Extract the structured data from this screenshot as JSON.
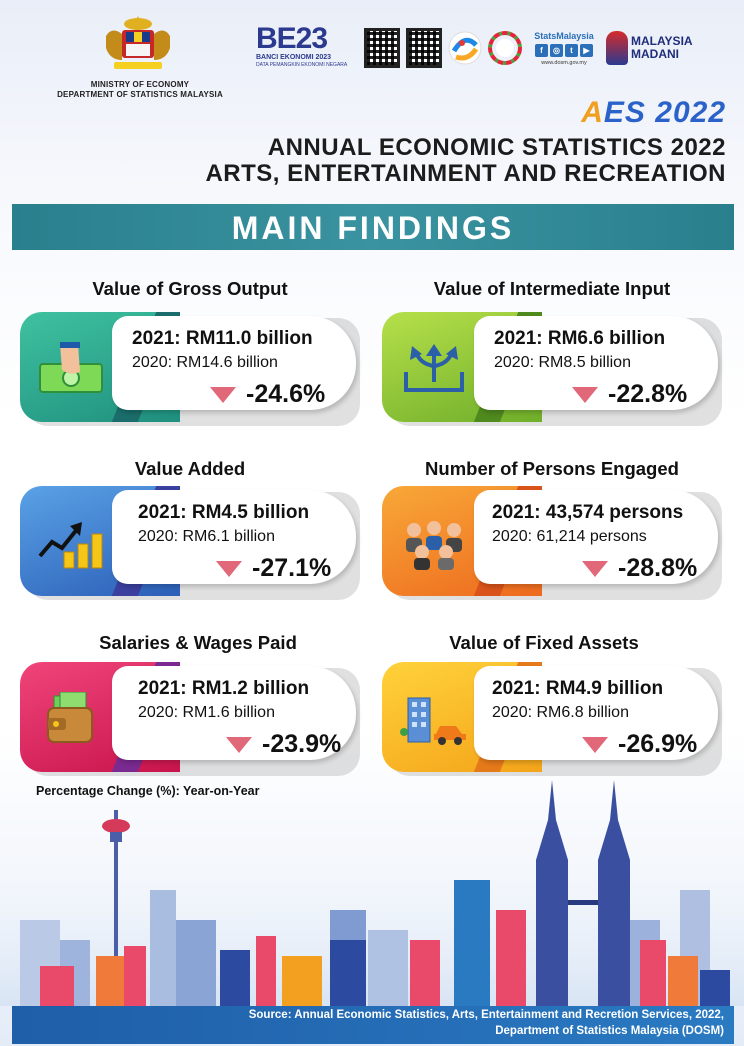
{
  "header": {
    "ministry_line1": "MINISTRY OF ECONOMY",
    "ministry_line2": "DEPARTMENT OF STATISTICS MALAYSIA",
    "banci_logo": "BE23",
    "banci_line1": "BANCI EKONOMI 2023",
    "banci_line2": "DATA PEMANGKIN EKONOMI NEGARA",
    "statsmalaysia_label": "StatsMalaysia",
    "statsmalaysia_url": "www.dosm.gov.my",
    "social_icons": [
      "f",
      "◎",
      "t",
      "▶"
    ],
    "madani_line1": "MALAYSIA",
    "madani_line2": "MADANI",
    "aes_logo_a": "A",
    "aes_logo_rest": "ES 2022",
    "title_line1": "ANNUAL ECONOMIC STATISTICS 2022",
    "title_line2": "ARTS, ENTERTAINMENT AND RECREATION"
  },
  "banner": {
    "text": "MAIN FINDINGS"
  },
  "cards": {
    "gross_output": {
      "title": "Value of Gross Output",
      "v2021": "2021: RM11.0 billion",
      "v2020": "2020: RM14.6 billion",
      "pct": "-24.6%",
      "icon": "money-hand-icon"
    },
    "intermediate_input": {
      "title": "Value of Intermediate Input",
      "v2021": "2021: RM6.6 billion",
      "v2020": "2020: RM8.5 billion",
      "pct": "-22.8%",
      "icon": "input-arrows-icon"
    },
    "value_added": {
      "title": "Value Added",
      "v2021": "2021: RM4.5 billion",
      "v2020": "2020: RM6.1 billion",
      "pct": "-27.1%",
      "icon": "growth-coins-icon"
    },
    "persons_engaged": {
      "title": "Number of Persons Engaged",
      "v2021": "2021: 43,574 persons",
      "v2020": "2020: 61,214 persons",
      "pct": "-28.8%",
      "icon": "people-group-icon"
    },
    "salaries_wages": {
      "title": "Salaries & Wages Paid",
      "v2021": "2021: RM1.2 billion",
      "v2020": "2020: RM1.6 billion",
      "pct": "-23.9%",
      "icon": "wallet-icon"
    },
    "fixed_assets": {
      "title": "Value of Fixed Assets",
      "v2021": "2021: RM4.9 billion",
      "v2020": "2020: RM6.8 billion",
      "pct": "-26.9%",
      "icon": "building-car-icon"
    }
  },
  "note": "Percentage Change (%): Year-on-Year",
  "footer": {
    "line1": "Source: Annual Economic Statistics, Arts, Entertainment and Recretion Services, 2022,",
    "line2": "Department of Statistics Malaysia (DOSM)"
  },
  "colors": {
    "teal_banner": "#2a7f8d",
    "down_triangle": "#e06878",
    "title_blue": "#2b62c9",
    "aes_orange": "#f0a020"
  }
}
